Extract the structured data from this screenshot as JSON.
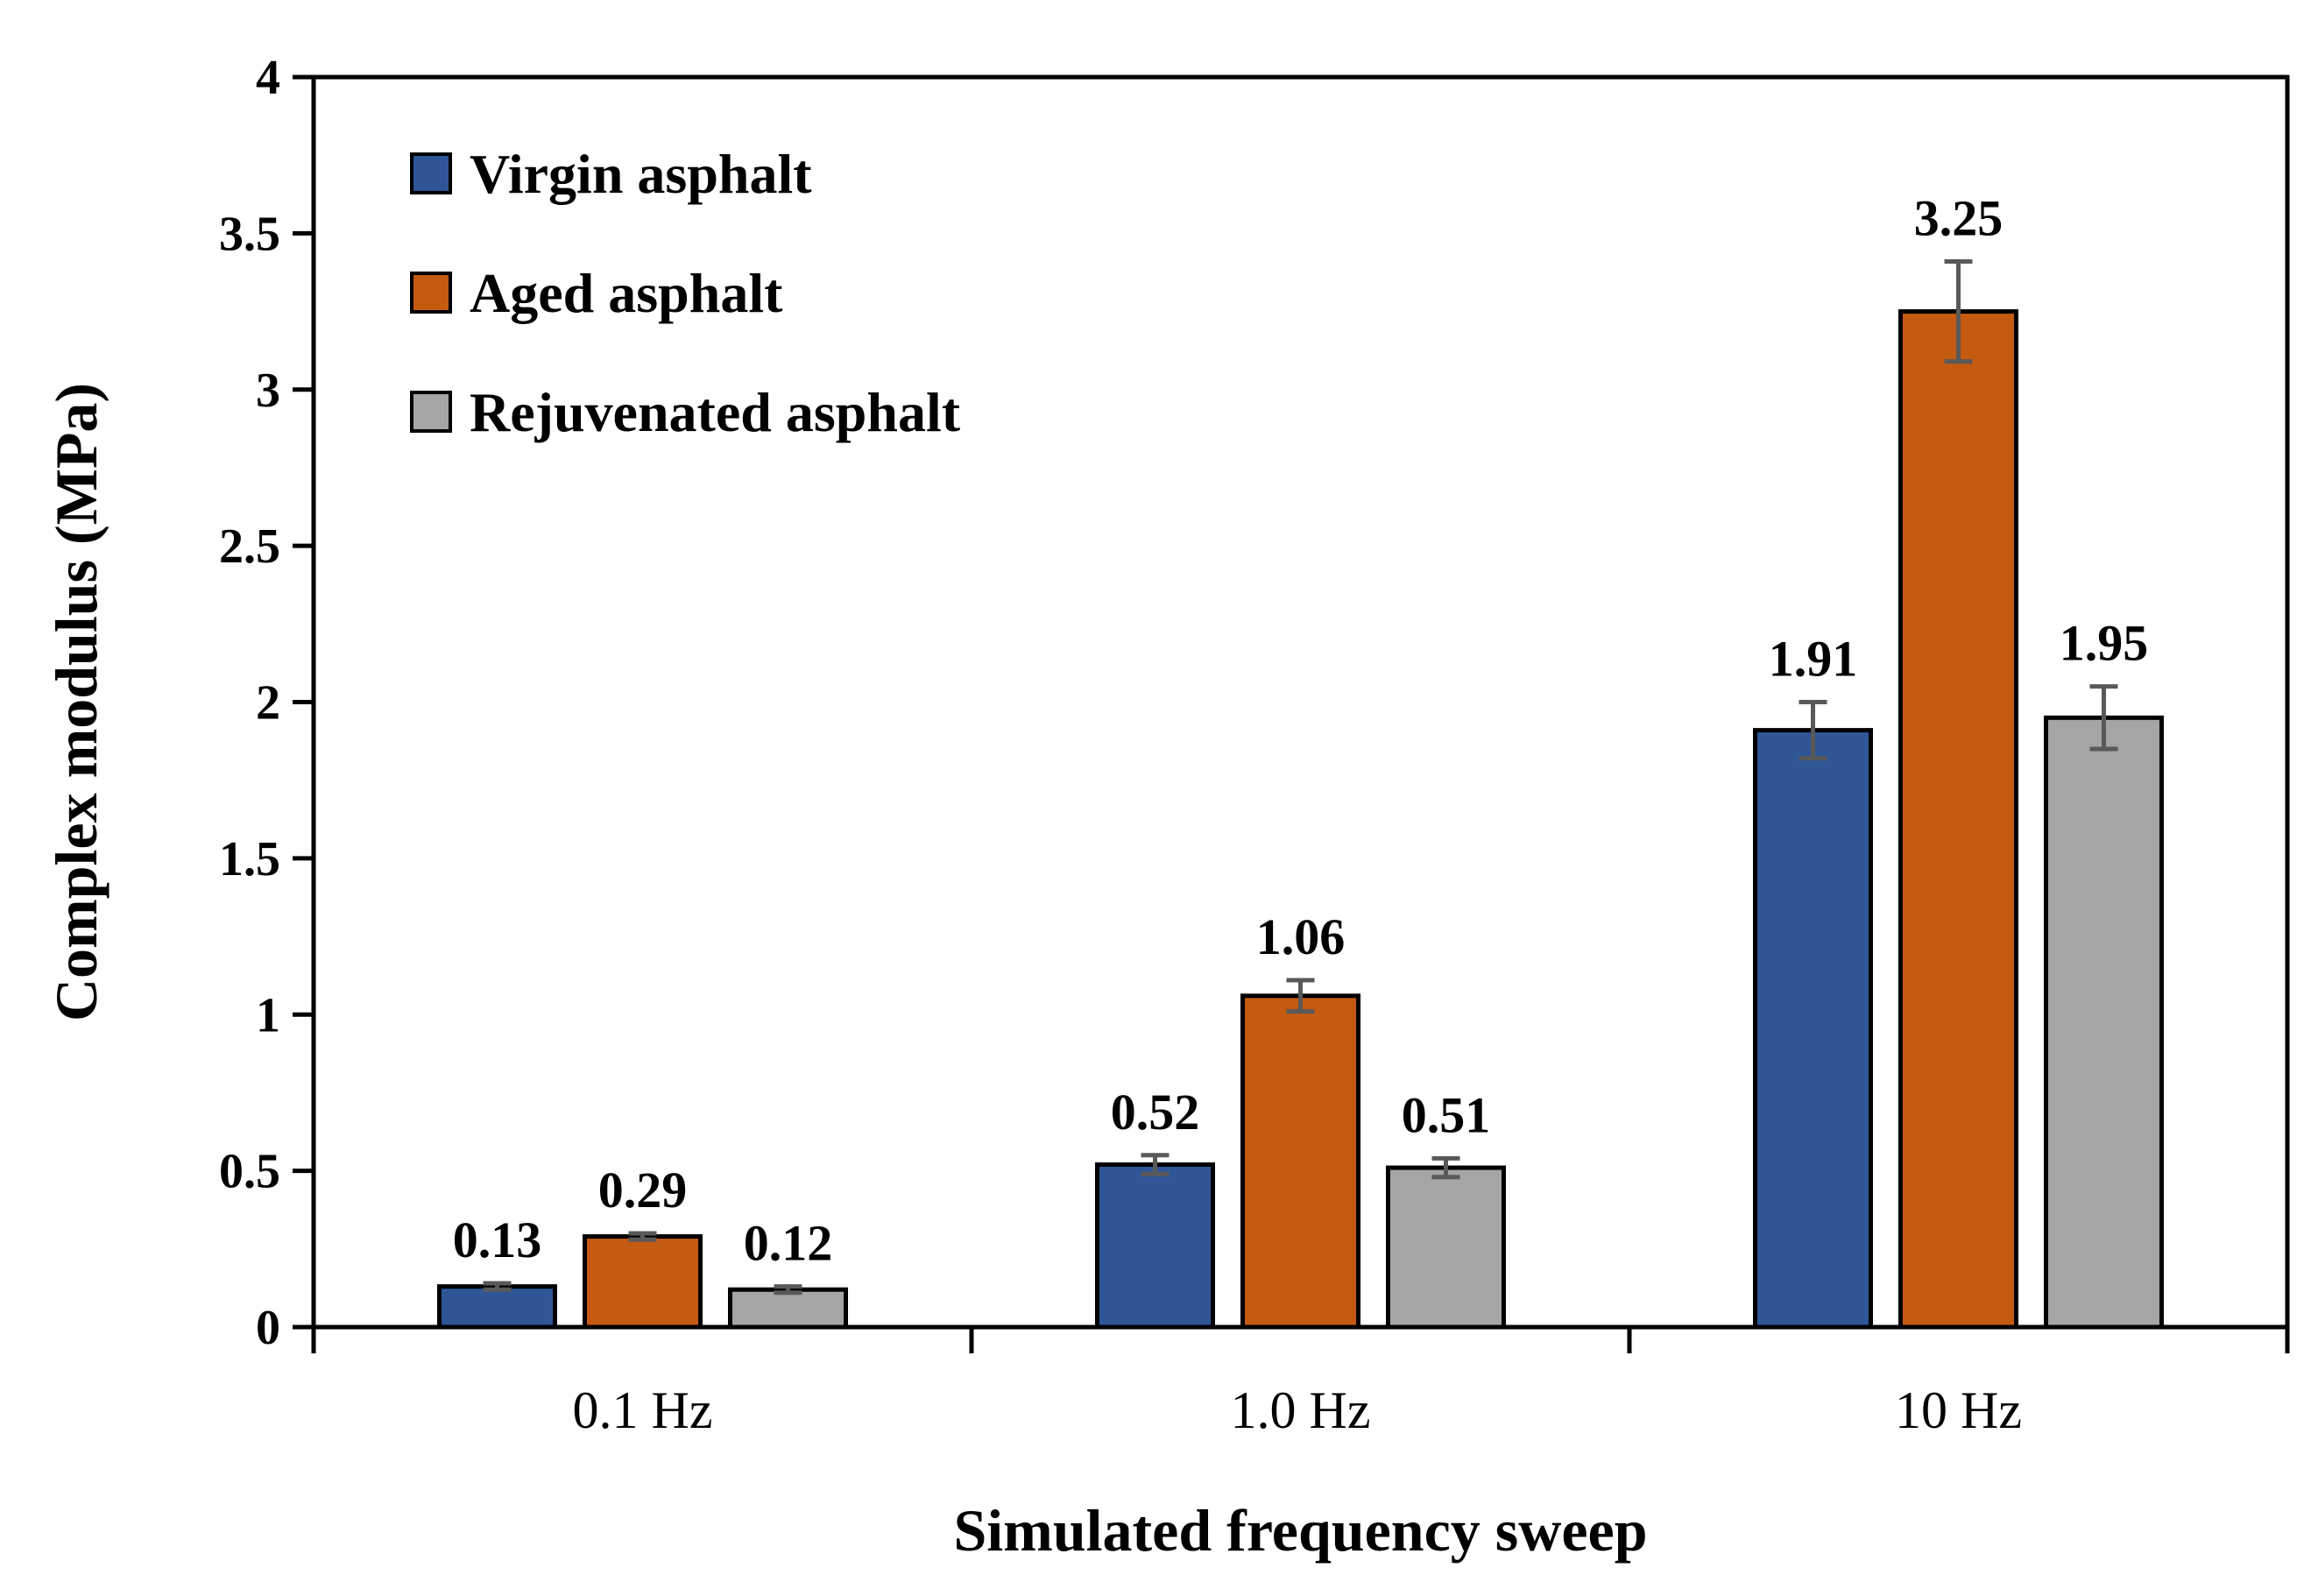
{
  "chart_data": {
    "type": "bar",
    "categories": [
      "0.1 Hz",
      "1.0 Hz",
      "10 Hz"
    ],
    "series": [
      {
        "name": "Virgin asphalt",
        "color": "#2f5597",
        "values": [
          0.13,
          0.52,
          1.91
        ],
        "errors": [
          0.01,
          0.03,
          0.09
        ],
        "labels": [
          "0.13",
          "0.52",
          "1.91"
        ]
      },
      {
        "name": "Aged asphalt",
        "color": "#c55a11",
        "values": [
          0.29,
          1.06,
          3.25
        ],
        "errors": [
          0.01,
          0.05,
          0.16
        ],
        "labels": [
          "0.29",
          "1.06",
          "3.25"
        ]
      },
      {
        "name": "Rejuvenated asphalt",
        "color": "#a5a5a5",
        "values": [
          0.12,
          0.51,
          1.95
        ],
        "errors": [
          0.01,
          0.03,
          0.1
        ],
        "labels": [
          "0.12",
          "0.51",
          "1.95"
        ]
      }
    ],
    "xlabel": "Simulated frequency sweep",
    "ylabel": "Complex modulus (MPa)",
    "ylim": [
      0,
      4
    ],
    "yticks": [
      0,
      0.5,
      1,
      1.5,
      2,
      2.5,
      3,
      3.5,
      4
    ],
    "ytick_labels": [
      "0",
      "0.5",
      "1",
      "1.5",
      "2",
      "2.5",
      "3",
      "3.5",
      "4"
    ],
    "grid": false,
    "legend_position": "top-left",
    "error_bar_color": "#595959"
  }
}
